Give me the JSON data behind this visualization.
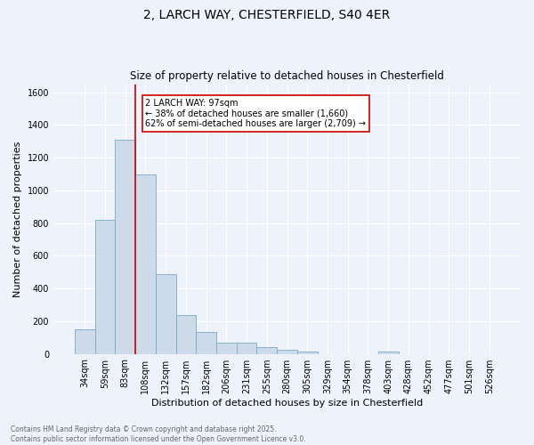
{
  "title1": "2, LARCH WAY, CHESTERFIELD, S40 4ER",
  "title2": "Size of property relative to detached houses in Chesterfield",
  "xlabel": "Distribution of detached houses by size in Chesterfield",
  "ylabel": "Number of detached properties",
  "categories": [
    "34sqm",
    "59sqm",
    "83sqm",
    "108sqm",
    "132sqm",
    "157sqm",
    "182sqm",
    "206sqm",
    "231sqm",
    "255sqm",
    "280sqm",
    "305sqm",
    "329sqm",
    "354sqm",
    "378sqm",
    "403sqm",
    "428sqm",
    "452sqm",
    "477sqm",
    "501sqm",
    "526sqm"
  ],
  "values": [
    150,
    820,
    1310,
    1100,
    490,
    235,
    135,
    70,
    68,
    40,
    27,
    14,
    0,
    0,
    0,
    14,
    0,
    0,
    0,
    0,
    0
  ],
  "bar_color": "#ccdaea",
  "bar_edge_color": "#7aaac8",
  "red_line_x": 2.5,
  "annotation_text": "2 LARCH WAY: 97sqm\n← 38% of detached houses are smaller (1,660)\n62% of semi-detached houses are larger (2,709) →",
  "annotation_box_color": "#ffffff",
  "annotation_box_edge": "#cc0000",
  "ylim": [
    0,
    1650
  ],
  "yticks": [
    0,
    200,
    400,
    600,
    800,
    1000,
    1200,
    1400,
    1600
  ],
  "footer1": "Contains HM Land Registry data © Crown copyright and database right 2025.",
  "footer2": "Contains public sector information licensed under the Open Government Licence v3.0.",
  "bg_color": "#eef2fa",
  "grid_color": "#ffffff",
  "title1_fontsize": 10,
  "title2_fontsize": 8.5
}
